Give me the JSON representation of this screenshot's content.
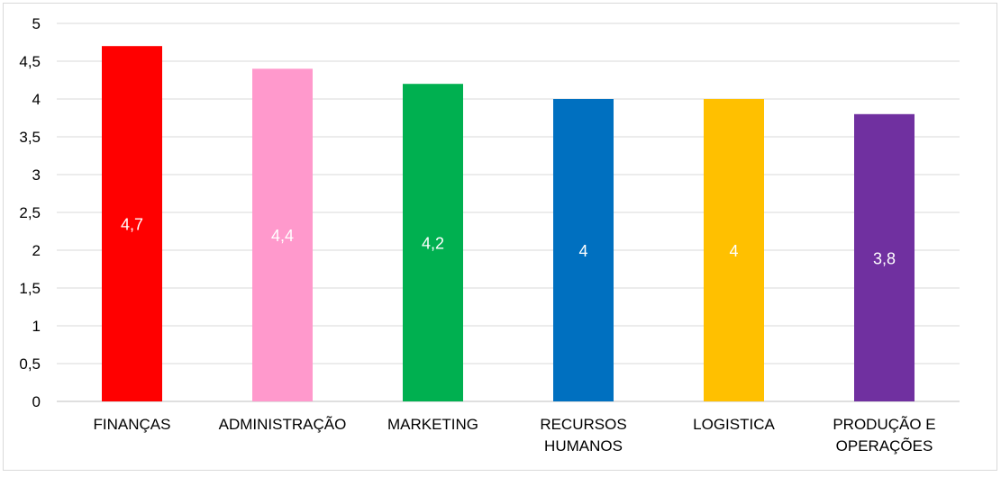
{
  "chart_data": {
    "type": "bar",
    "categories": [
      [
        "FINANÇAS"
      ],
      [
        "ADMINISTRAÇÃO"
      ],
      [
        "MARKETING"
      ],
      [
        "RECURSOS",
        "HUMANOS"
      ],
      [
        "LOGISTICA"
      ],
      [
        "PRODUÇÃO E",
        "OPERAÇÕES"
      ]
    ],
    "values": [
      4.7,
      4.4,
      4.2,
      4,
      4,
      3.8
    ],
    "data_labels": [
      "4,7",
      "4,4",
      "4,2",
      "4",
      "4",
      "3,8"
    ],
    "colors": [
      "#ff0000",
      "#ff99cc",
      "#00b050",
      "#0070c0",
      "#ffc000",
      "#7030a0"
    ],
    "ylim": [
      0,
      5
    ],
    "y_ticks": [
      0,
      0.5,
      1,
      1.5,
      2,
      2.5,
      3,
      3.5,
      4,
      4.5,
      5
    ],
    "y_tick_labels": [
      "0",
      "0,5",
      "1",
      "1,5",
      "2",
      "2,5",
      "3",
      "3,5",
      "4",
      "4,5",
      "5"
    ],
    "grid": true,
    "legend": "none",
    "title": "",
    "xlabel": "",
    "ylabel": ""
  }
}
